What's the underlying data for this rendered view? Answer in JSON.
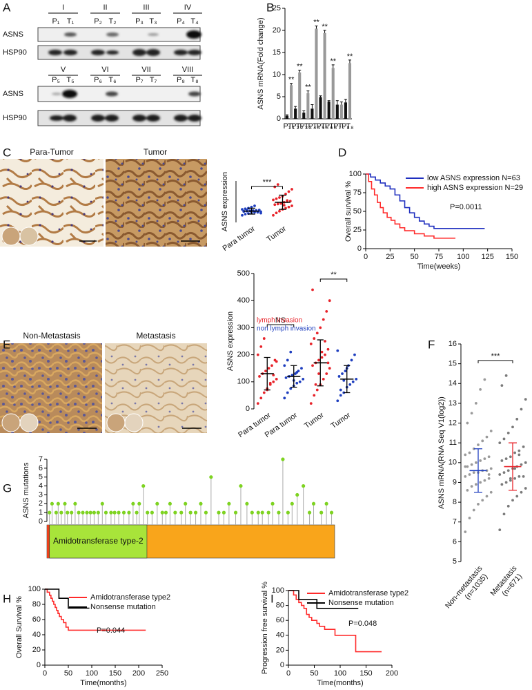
{
  "panel_labels": [
    "A",
    "B",
    "C",
    "D",
    "E",
    "F",
    "G",
    "H",
    "I"
  ],
  "blot": {
    "groups_top": [
      "I",
      "II",
      "III",
      "IV"
    ],
    "groups_bottom": [
      "V",
      "VI",
      "VII",
      "VIII"
    ],
    "lanes_top": [
      "P₁",
      "T₁",
      "P₂",
      "T₂",
      "P₃",
      "T₃",
      "P₄",
      "T₄"
    ],
    "lanes_bottom": [
      "P₅",
      "T₅",
      "P₆",
      "T₆",
      "P₇",
      "T₇",
      "P₈",
      "T₈"
    ],
    "proteins": [
      "ASNS",
      "HSP90"
    ]
  },
  "ihc": {
    "C": [
      "Para-Tumor",
      "Tumor"
    ],
    "E": [
      "Non-Metastasis",
      "Metastasis"
    ]
  },
  "chart_data": [
    {
      "type": "bar",
      "categories": [
        "P₁",
        "T₁",
        "P₂",
        "T₂",
        "P₃",
        "T₃",
        "P₄",
        "T₄",
        "P₅",
        "T₅",
        "P₆",
        "T₆",
        "P₇",
        "T₇",
        "P₈",
        "T₈"
      ],
      "values": [
        0.7,
        7.6,
        2.3,
        10.5,
        1.4,
        5.8,
        2.3,
        20.4,
        4.9,
        19.4,
        3.9,
        11.5,
        3.2,
        3.2,
        3.7,
        12.6
      ],
      "errors": [
        0.2,
        0.4,
        0.5,
        0.5,
        0.4,
        0.5,
        0.9,
        0.6,
        0.3,
        0.6,
        0.2,
        0.7,
        0.9,
        0.6,
        0.7,
        0.7
      ],
      "significance": [
        null,
        "**",
        null,
        "**",
        null,
        "**",
        null,
        "**",
        null,
        "**",
        null,
        "**",
        null,
        null,
        null,
        "**"
      ],
      "colors": [
        "#111111",
        "#999999",
        "#111111",
        "#999999",
        "#111111",
        "#999999",
        "#111111",
        "#999999",
        "#111111",
        "#999999",
        "#111111",
        "#999999",
        "#111111",
        "#999999",
        "#111111",
        "#999999"
      ],
      "y_label": "ASNS mRNA(Fold change)",
      "ylim": [
        0,
        25
      ],
      "yticks": [
        0,
        5,
        10,
        15,
        20,
        25
      ]
    },
    {
      "type": "strip",
      "categories": [
        "Para tumor",
        "Tumor"
      ],
      "values": [
        [
          60,
          70,
          75,
          80,
          85,
          88,
          90,
          92,
          95,
          98,
          100,
          102,
          105,
          110,
          115,
          120,
          130,
          140,
          85,
          78,
          95,
          105
        ],
        [
          60,
          80,
          95,
          110,
          120,
          130,
          140,
          150,
          155,
          160,
          170,
          175,
          180,
          190,
          200,
          210,
          220,
          240,
          260,
          280,
          300,
          320,
          165,
          145,
          185
        ]
      ],
      "colors": [
        "#1f3fbf",
        "#e8232a"
      ],
      "means": [
        95,
        170
      ],
      "sds": [
        25,
        60
      ],
      "significance": [
        "***"
      ],
      "y_label": "ASNS expression",
      "ylim": [
        0,
        350
      ]
    },
    {
      "type": "survival",
      "series": [
        {
          "name": "low ASNS expression N=63",
          "color": "#1f2fbf",
          "x": [
            0,
            5,
            10,
            15,
            20,
            25,
            30,
            35,
            40,
            45,
            50,
            55,
            60,
            65,
            70,
            122
          ],
          "values": [
            100,
            96,
            92,
            88,
            84,
            80,
            72,
            64,
            55,
            48,
            42,
            37,
            33,
            30,
            27,
            27
          ]
        },
        {
          "name": "high ASNS expression N=29",
          "color": "#ff2a2a",
          "x": [
            0,
            3,
            6,
            9,
            12,
            15,
            18,
            22,
            26,
            30,
            35,
            40,
            50,
            60,
            70,
            92
          ],
          "values": [
            100,
            90,
            80,
            72,
            62,
            55,
            48,
            42,
            38,
            33,
            28,
            24,
            20,
            17,
            14,
            14
          ]
        }
      ],
      "annotation": "P=0.0011",
      "x_label": "Time(weeks)",
      "y_label": "Overall survival %",
      "xlim": [
        0,
        150
      ],
      "xticks": [
        0,
        25,
        50,
        75,
        100,
        125,
        150
      ],
      "ylim": [
        0,
        100
      ],
      "yticks": [
        0,
        25,
        50,
        75,
        100
      ]
    },
    {
      "type": "strip",
      "categories": [
        "Para tumor",
        "Para tumor",
        "Tumor",
        "Tumor"
      ],
      "values": [
        [
          20,
          40,
          60,
          75,
          90,
          100,
          110,
          120,
          130,
          140,
          150,
          160,
          180,
          200,
          230,
          260,
          70,
          95,
          125,
          175
        ],
        [
          40,
          60,
          75,
          85,
          95,
          100,
          110,
          115,
          120,
          125,
          130,
          140,
          150,
          160,
          180,
          210,
          105,
          135
        ],
        [
          20,
          50,
          70,
          90,
          110,
          130,
          150,
          160,
          170,
          180,
          190,
          200,
          220,
          240,
          260,
          280,
          300,
          330,
          360,
          400,
          440,
          90,
          130,
          210,
          250,
          170
        ],
        [
          30,
          50,
          60,
          80,
          90,
          100,
          110,
          120,
          130,
          140,
          160,
          180,
          200,
          215,
          70,
          105,
          150
        ]
      ],
      "colors": [
        "#e8232a",
        "#1f3fbf",
        "#e8232a",
        "#1f3fbf"
      ],
      "means": [
        130,
        120,
        170,
        110
      ],
      "sds": [
        60,
        40,
        85,
        50
      ],
      "legend": [
        {
          "name": "lymph invasion",
          "color": "#e8232a"
        },
        {
          "name": "non lymph invasion",
          "color": "#1f3fbf"
        }
      ],
      "significance": [
        "NS",
        "**"
      ],
      "y_label": "ASNS expression",
      "ylim": [
        0,
        500
      ],
      "yticks": [
        0,
        100,
        200,
        300,
        400,
        500
      ]
    },
    {
      "type": "strip",
      "categories": [
        "Non-metastasis",
        "Metastasis"
      ],
      "sublabels": [
        "(n=1035)",
        "(n=671)"
      ],
      "values": [
        [
          6.5,
          7.2,
          7.6,
          7.9,
          8.1,
          8.3,
          8.5,
          8.6,
          8.8,
          8.9,
          9.0,
          9.1,
          9.2,
          9.3,
          9.4,
          9.5,
          9.5,
          9.6,
          9.6,
          9.7,
          9.8,
          9.9,
          10.0,
          10.1,
          10.2,
          10.3,
          10.4,
          10.5,
          10.7,
          10.9,
          11.1,
          11.3,
          11.6,
          12.0,
          12.5,
          13.0,
          13.7,
          14.2,
          9.4,
          9.8
        ],
        [
          6.6,
          7.4,
          7.8,
          8.1,
          8.3,
          8.5,
          8.7,
          8.9,
          9.0,
          9.1,
          9.2,
          9.3,
          9.3,
          9.4,
          9.5,
          9.6,
          9.7,
          9.8,
          9.9,
          10.0,
          10.1,
          10.2,
          10.3,
          10.5,
          10.6,
          10.8,
          11.0,
          11.2,
          11.5,
          11.8,
          12.2,
          12.7,
          13.2,
          13.9,
          14.4,
          9.2,
          9.7,
          10.4
        ]
      ],
      "colors": [
        "#9a9a9a",
        "#7a7a7a"
      ],
      "stat_colors": [
        "#1f3fbf",
        "#e8232a"
      ],
      "means": [
        9.6,
        9.8
      ],
      "sds": [
        1.1,
        1.2
      ],
      "significance": [
        "***"
      ],
      "y_label": "ASNS mRNA(RNA Seq V1(log2))",
      "ylim": [
        5,
        16
      ],
      "yticks": [
        5,
        6,
        7,
        8,
        9,
        10,
        11,
        12,
        13,
        14,
        15,
        16
      ]
    },
    {
      "type": "lollipop",
      "x": [
        5,
        10,
        18,
        22,
        28,
        35,
        40,
        48,
        55,
        62,
        70,
        78,
        85,
        92,
        100,
        108,
        115,
        125,
        132,
        140,
        150,
        160,
        168,
        175,
        180,
        188,
        196,
        205,
        215,
        225,
        232,
        240,
        250,
        262,
        270,
        280,
        290,
        300,
        310,
        320,
        335,
        345,
        355,
        368,
        378,
        390,
        400,
        412,
        420,
        432,
        440,
        452,
        460,
        470,
        478,
        488,
        500,
        512,
        520,
        535,
        545,
        555
      ],
      "values": [
        1,
        2,
        1,
        2,
        1,
        2,
        1,
        1,
        2,
        1,
        1,
        1,
        1,
        1,
        1,
        2,
        1,
        1,
        1,
        1,
        1,
        1,
        2,
        1,
        2,
        4,
        1,
        1,
        2,
        1,
        1,
        2,
        1,
        1,
        2,
        1,
        1,
        2,
        1,
        5,
        1,
        1,
        2,
        1,
        4,
        2,
        1,
        1,
        1,
        1,
        2,
        1,
        7,
        1,
        2,
        3,
        4,
        1,
        2,
        1,
        2,
        1
      ],
      "color": "#7ed321",
      "protein_color": "#f9a51b",
      "domains": [
        {
          "name": "Amidotransferase type-2",
          "start": 5,
          "end": 195,
          "color": "#a8e43a"
        }
      ],
      "y_label": "ASNS mutations",
      "xlim": [
        0,
        561
      ],
      "ylim": [
        0,
        7
      ],
      "yticks": [
        0,
        1,
        2,
        3,
        4,
        5,
        6,
        7
      ]
    },
    {
      "type": "survival",
      "series": [
        {
          "name": "Amidotransferase type2",
          "color": "#ff2a2a",
          "x": [
            0,
            5,
            10,
            13,
            16,
            19,
            22,
            25,
            28,
            31,
            35,
            40,
            45,
            50,
            215
          ],
          "values": [
            100,
            96,
            92,
            88,
            84,
            80,
            76,
            72,
            68,
            64,
            60,
            56,
            50,
            46,
            46
          ]
        },
        {
          "name": "Nonsense mutation",
          "color": "#000000",
          "x": [
            0,
            20,
            30,
            50,
            95
          ],
          "values": [
            100,
            100,
            88,
            75,
            75
          ]
        }
      ],
      "annotation": "P=0.044",
      "x_label": "Time(months)",
      "y_label": "Overall Survival %",
      "xlim": [
        0,
        250
      ],
      "xticks": [
        0,
        50,
        100,
        150,
        200,
        250
      ],
      "ylim": [
        0,
        100
      ],
      "yticks": [
        0,
        20,
        40,
        60,
        80,
        100
      ]
    },
    {
      "type": "survival",
      "series": [
        {
          "name": "Amidotransferase type2",
          "color": "#ff2a2a",
          "x": [
            0,
            10,
            15,
            20,
            25,
            30,
            35,
            40,
            45,
            55,
            60,
            70,
            90,
            130,
            180
          ],
          "values": [
            100,
            94,
            88,
            84,
            80,
            76,
            68,
            64,
            60,
            56,
            52,
            48,
            40,
            18,
            18
          ]
        },
        {
          "name": "Nonsense mutation",
          "color": "#000000",
          "x": [
            0,
            20,
            55,
            135
          ],
          "values": [
            100,
            88,
            76,
            76
          ]
        }
      ],
      "annotation": "P=0.048",
      "x_label": "Time(months)",
      "y_label": "Progression free survival %",
      "xlim": [
        0,
        200
      ],
      "xticks": [
        0,
        50,
        100,
        150,
        200
      ],
      "ylim": [
        0,
        100
      ],
      "yticks": [
        0,
        20,
        40,
        60,
        80,
        100
      ]
    }
  ]
}
